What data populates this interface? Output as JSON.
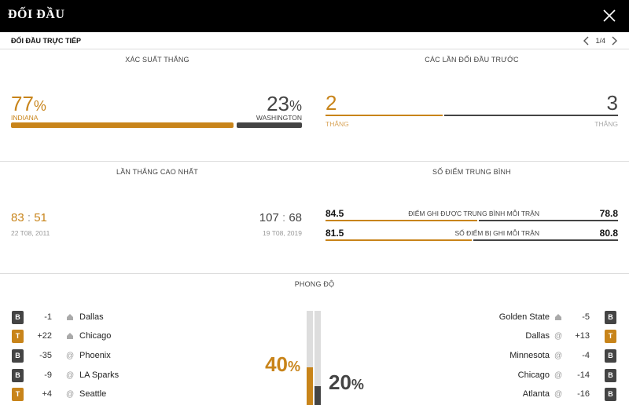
{
  "header": {
    "title": "ĐỐI ĐẦU",
    "close_icon": "close-icon"
  },
  "subheader": {
    "label": "ĐỐI ĐẦU TRỰC TIẾP",
    "pager": "1/4"
  },
  "win_probability": {
    "title": "XÁC SUẤT THẮNG",
    "home_pct": "77",
    "home_team": "INDIANA",
    "away_pct": "23",
    "away_team": "WASHINGTON",
    "home_fraction": 0.77,
    "pct_symbol": "%"
  },
  "previous_meetings": {
    "title": "CÁC LẦN ĐỐI ĐẦU TRƯỚC",
    "home_wins": "2",
    "away_wins": "3",
    "home_label": "THẮNG",
    "away_label": "THẮNG",
    "home_fraction": 0.4
  },
  "biggest_win": {
    "title": "LẦN THẮNG CAO NHẤT",
    "home_score_a": "83",
    "home_score_b": "51",
    "home_date": "22 T08, 2011",
    "away_score_a": "107",
    "away_score_b": "68",
    "away_date": "19 T08, 2019",
    "sep": ":"
  },
  "average_points": {
    "title": "SỐ ĐIỂM TRUNG BÌNH",
    "rows": [
      {
        "home": "84.5",
        "label": "ĐIỂM GHI ĐƯỢC TRUNG BÌNH MỖI TRẬN",
        "away": "78.8",
        "home_fraction": 0.52
      },
      {
        "home": "81.5",
        "label": "SỐ ĐIỂM BỊ GHI MỖI TRẬN",
        "away": "80.8",
        "home_fraction": 0.5
      }
    ]
  },
  "form": {
    "title": "PHONG ĐỘ",
    "home_pct": "40",
    "away_pct": "20",
    "pct_symbol": "%",
    "home_fraction": 0.4,
    "away_fraction": 0.2,
    "home": [
      {
        "result": "B",
        "diff": "-1",
        "loc": "home",
        "team": "Dallas"
      },
      {
        "result": "T",
        "diff": "+22",
        "loc": "home",
        "team": "Chicago"
      },
      {
        "result": "B",
        "diff": "-35",
        "loc": "away",
        "team": "Phoenix"
      },
      {
        "result": "B",
        "diff": "-9",
        "loc": "away",
        "team": "LA Sparks"
      },
      {
        "result": "T",
        "diff": "+4",
        "loc": "away",
        "team": "Seattle"
      }
    ],
    "away": [
      {
        "result": "B",
        "diff": "-5",
        "loc": "home",
        "team": "Golden State"
      },
      {
        "result": "T",
        "diff": "+13",
        "loc": "away",
        "team": "Dallas"
      },
      {
        "result": "B",
        "diff": "-4",
        "loc": "away",
        "team": "Minnesota"
      },
      {
        "result": "B",
        "diff": "-14",
        "loc": "away",
        "team": "Chicago"
      },
      {
        "result": "B",
        "diff": "-16",
        "loc": "away",
        "team": "Atlanta"
      }
    ]
  },
  "colors": {
    "accent": "#c8841a",
    "dark": "#444444",
    "track": "#dddddd"
  }
}
